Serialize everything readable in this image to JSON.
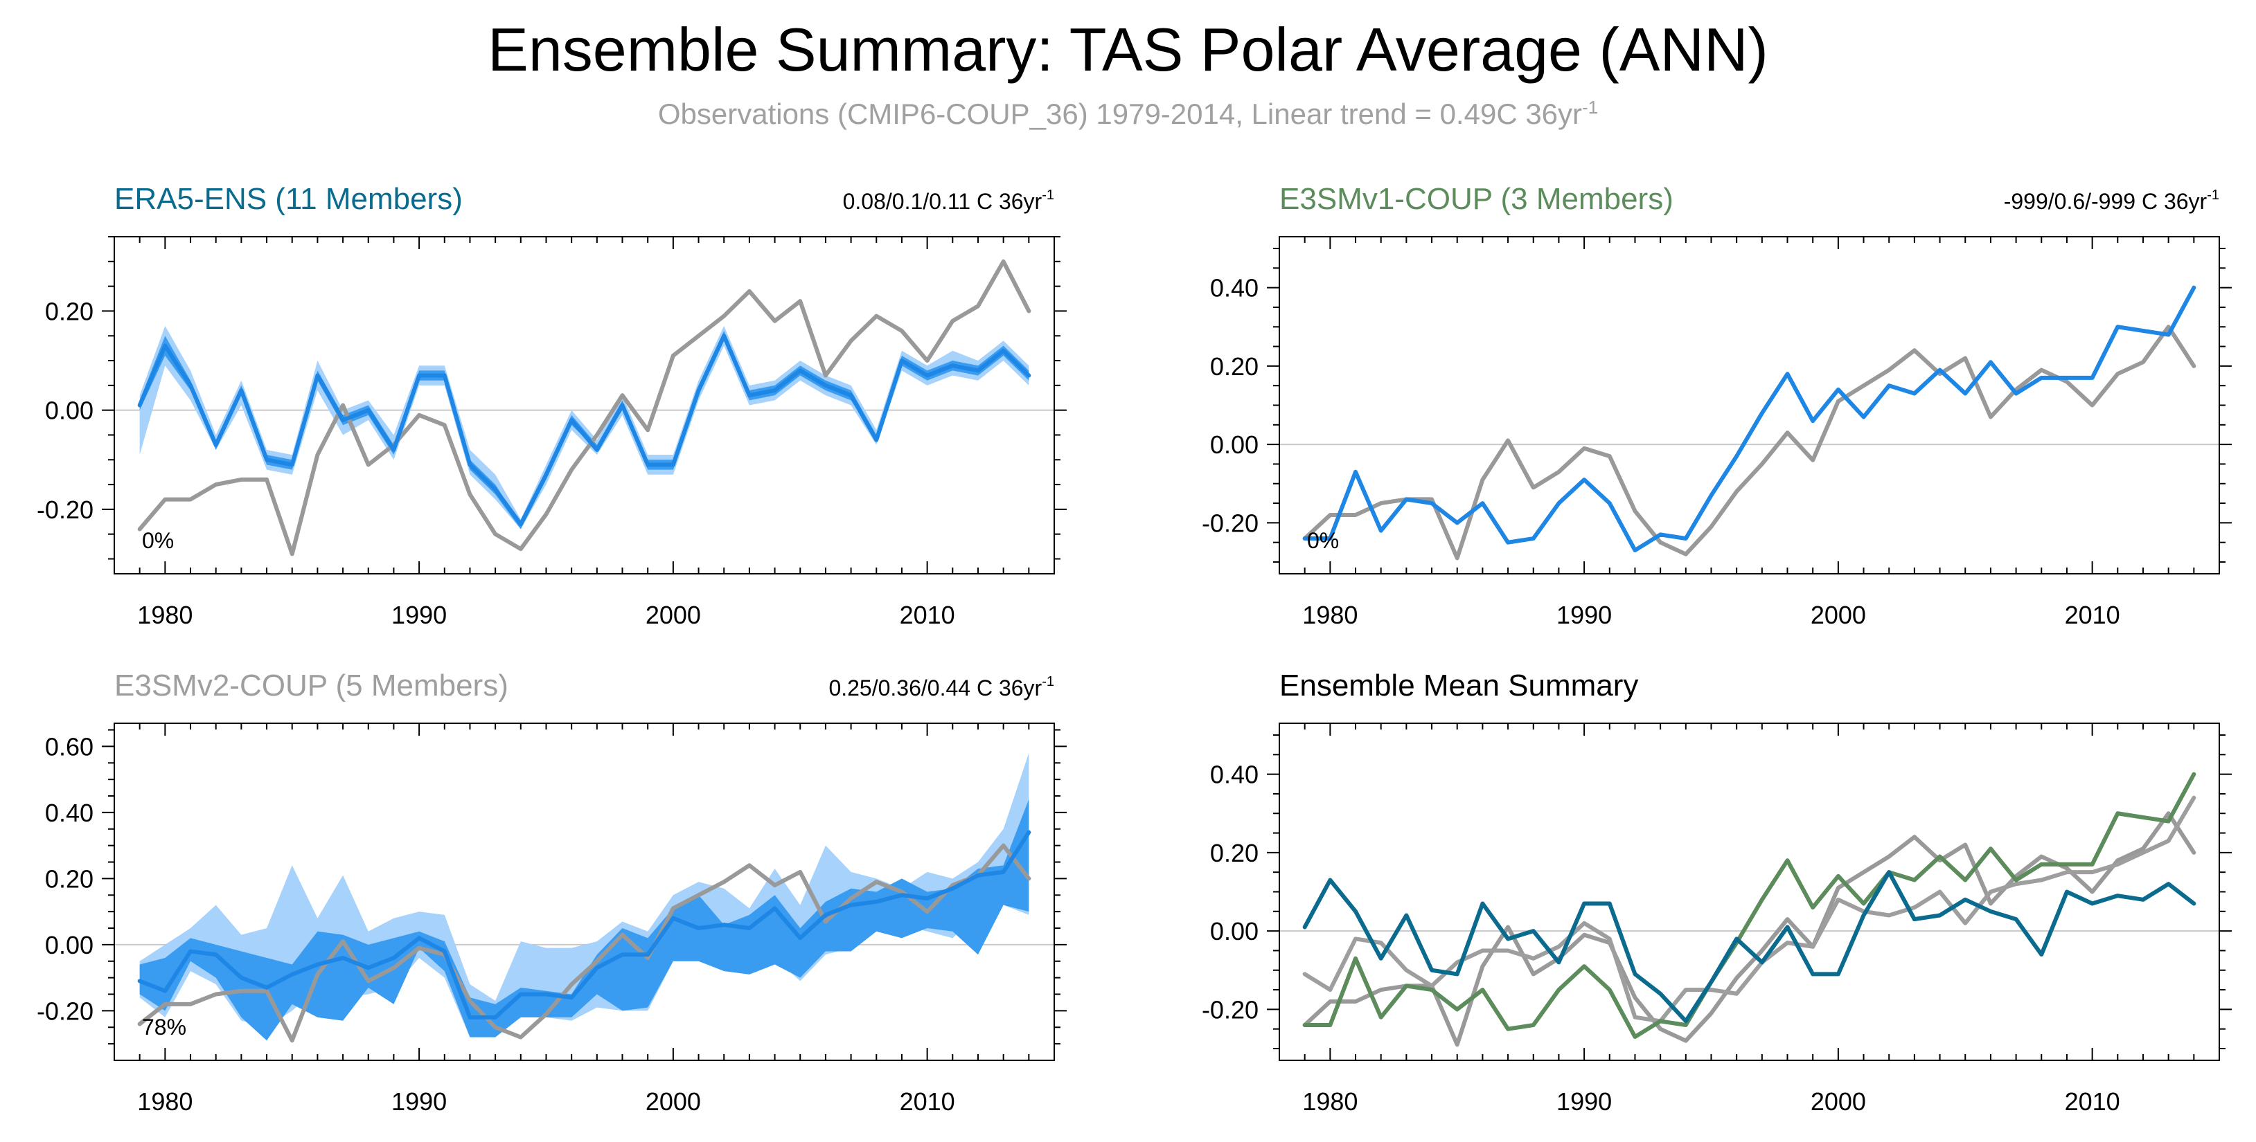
{
  "title": "Ensemble Summary: TAS Polar Average (ANN)",
  "subtitle": {
    "text": "Observations (CMIP6-COUP_36) 1979-2014, Linear trend = 0.49C 36yr",
    "superscript": "-1"
  },
  "colors": {
    "obs": "#999999",
    "mean_blue": "#1e87e6",
    "band_dark": "#3a9cf0",
    "band_light": "#a6d2fb",
    "era5_mean": "#0a6b8f",
    "e3smv1_mean": "#5c8c5c",
    "e3smv2_mean": "#9e9e9e",
    "era5_title": "#0a6b8f",
    "e3smv1_title": "#5c8c5c",
    "e3smv2_title": "#9e9e9e"
  },
  "chart_data": [
    {
      "type": "line",
      "title": "ERA5-ENS (11 Members)",
      "trend_text": "0.08/0.1/0.11 C 36yr",
      "trend_sup": "-1",
      "percent_label": "0%",
      "x": [
        1979,
        1980,
        1981,
        1982,
        1983,
        1984,
        1985,
        1986,
        1987,
        1988,
        1989,
        1990,
        1991,
        1992,
        1993,
        1994,
        1995,
        1996,
        1997,
        1998,
        1999,
        2000,
        2001,
        2002,
        2003,
        2004,
        2005,
        2006,
        2007,
        2008,
        2009,
        2010,
        2011,
        2012,
        2013,
        2014
      ],
      "xlim": [
        1978,
        2015
      ],
      "xticks": [
        1980,
        1990,
        2000,
        2010
      ],
      "xtick_labels": [
        "1980",
        "1990",
        "2000",
        "2010"
      ],
      "ylim": [
        -0.33,
        0.35
      ],
      "yticks": [
        -0.2,
        0,
        0.2
      ],
      "ytick_labels": [
        "-0.20",
        "0.00",
        "0.20"
      ],
      "series": [
        {
          "values": [
            0.01,
            0.13,
            0.05,
            -0.07,
            0.04,
            -0.1,
            -0.11,
            0.07,
            -0.02,
            0.0,
            -0.08,
            0.07,
            0.07,
            -0.11,
            -0.16,
            -0.23,
            -0.13,
            -0.02,
            -0.08,
            0.01,
            -0.11,
            -0.11,
            0.04,
            0.15,
            0.03,
            0.04,
            0.08,
            0.05,
            0.03,
            -0.06,
            0.1,
            0.07,
            0.09,
            0.08,
            0.12,
            0.07
          ]
        },
        {
          "values": [
            -0.24,
            -0.18,
            -0.18,
            -0.15,
            -0.14,
            -0.14,
            -0.29,
            -0.09,
            0.01,
            -0.11,
            -0.07,
            -0.01,
            -0.03,
            -0.17,
            -0.25,
            -0.28,
            -0.21,
            -0.12,
            -0.05,
            0.03,
            -0.04,
            0.11,
            0.15,
            0.19,
            0.24,
            0.18,
            0.22,
            0.07,
            0.14,
            0.19,
            0.16,
            0.1,
            0.18,
            0.21,
            0.3,
            0.2
          ]
        }
      ],
      "band_light": {
        "lower": [
          -0.09,
          0.09,
          0.02,
          -0.08,
          0.01,
          -0.12,
          -0.13,
          0.04,
          -0.05,
          -0.02,
          -0.1,
          0.05,
          0.05,
          -0.13,
          -0.18,
          -0.24,
          -0.15,
          -0.04,
          -0.09,
          -0.01,
          -0.13,
          -0.13,
          0.02,
          0.13,
          0.01,
          0.02,
          0.06,
          0.03,
          0.01,
          -0.07,
          0.08,
          0.05,
          0.07,
          0.06,
          0.1,
          0.05
        ],
        "upper": [
          0.03,
          0.17,
          0.08,
          -0.05,
          0.06,
          -0.08,
          -0.09,
          0.1,
          0.0,
          0.02,
          -0.05,
          0.09,
          0.09,
          -0.08,
          -0.13,
          -0.22,
          -0.11,
          0.0,
          -0.06,
          0.03,
          -0.09,
          -0.09,
          0.06,
          0.17,
          0.05,
          0.06,
          0.1,
          0.07,
          0.05,
          -0.04,
          0.12,
          0.09,
          0.12,
          0.1,
          0.14,
          0.09
        ]
      },
      "band_dark": {
        "lower": [
          0.0,
          0.11,
          0.04,
          -0.08,
          0.03,
          -0.11,
          -0.12,
          0.06,
          -0.03,
          -0.01,
          -0.09,
          0.06,
          0.06,
          -0.12,
          -0.17,
          -0.24,
          -0.14,
          -0.03,
          -0.08,
          0.0,
          -0.12,
          -0.12,
          0.03,
          0.14,
          0.02,
          0.03,
          0.07,
          0.04,
          0.02,
          -0.06,
          0.09,
          0.06,
          0.08,
          0.07,
          0.11,
          0.06
        ],
        "upper": [
          0.02,
          0.15,
          0.06,
          -0.06,
          0.05,
          -0.09,
          -0.1,
          0.08,
          -0.01,
          0.01,
          -0.07,
          0.08,
          0.08,
          -0.1,
          -0.15,
          -0.23,
          -0.12,
          -0.01,
          -0.07,
          0.02,
          -0.1,
          -0.1,
          0.05,
          0.16,
          0.04,
          0.05,
          0.09,
          0.06,
          0.04,
          -0.05,
          0.11,
          0.08,
          0.1,
          0.09,
          0.13,
          0.08
        ]
      }
    },
    {
      "type": "line",
      "title": "E3SMv1-COUP (3 Members)",
      "trend_text": "-999/0.6/-999 C 36yr",
      "trend_sup": "-1",
      "percent_label": "0%",
      "x": [
        1979,
        1980,
        1981,
        1982,
        1983,
        1984,
        1985,
        1986,
        1987,
        1988,
        1989,
        1990,
        1991,
        1992,
        1993,
        1994,
        1995,
        1996,
        1997,
        1998,
        1999,
        2000,
        2001,
        2002,
        2003,
        2004,
        2005,
        2006,
        2007,
        2008,
        2009,
        2010,
        2011,
        2012,
        2013,
        2014
      ],
      "xlim": [
        1978,
        2015
      ],
      "xticks": [
        1980,
        1990,
        2000,
        2010
      ],
      "xtick_labels": [
        "1980",
        "1990",
        "2000",
        "2010"
      ],
      "ylim": [
        -0.33,
        0.53
      ],
      "yticks": [
        -0.2,
        0,
        0.2,
        0.4
      ],
      "ytick_labels": [
        "-0.20",
        "0.00",
        "0.20",
        "0.40"
      ],
      "series": [
        {
          "values": [
            -0.24,
            -0.24,
            -0.07,
            -0.22,
            -0.14,
            -0.15,
            -0.2,
            -0.15,
            -0.25,
            -0.24,
            -0.15,
            -0.09,
            -0.15,
            -0.27,
            -0.23,
            -0.24,
            -0.13,
            -0.03,
            0.08,
            0.18,
            0.06,
            0.14,
            0.07,
            0.15,
            0.13,
            0.19,
            0.13,
            0.21,
            0.13,
            0.17,
            0.17,
            0.17,
            0.3,
            0.29,
            0.28,
            0.4
          ]
        },
        {
          "values": [
            -0.24,
            -0.18,
            -0.18,
            -0.15,
            -0.14,
            -0.14,
            -0.29,
            -0.09,
            0.01,
            -0.11,
            -0.07,
            -0.01,
            -0.03,
            -0.17,
            -0.25,
            -0.28,
            -0.21,
            -0.12,
            -0.05,
            0.03,
            -0.04,
            0.11,
            0.15,
            0.19,
            0.24,
            0.18,
            0.22,
            0.07,
            0.14,
            0.19,
            0.16,
            0.1,
            0.18,
            0.21,
            0.3,
            0.2
          ]
        }
      ]
    },
    {
      "type": "line",
      "title": "E3SMv2-COUP (5 Members)",
      "trend_text": "0.25/0.36/0.44 C 36yr",
      "trend_sup": "-1",
      "percent_label": "78%",
      "x": [
        1979,
        1980,
        1981,
        1982,
        1983,
        1984,
        1985,
        1986,
        1987,
        1988,
        1989,
        1990,
        1991,
        1992,
        1993,
        1994,
        1995,
        1996,
        1997,
        1998,
        1999,
        2000,
        2001,
        2002,
        2003,
        2004,
        2005,
        2006,
        2007,
        2008,
        2009,
        2010,
        2011,
        2012,
        2013,
        2014
      ],
      "xlim": [
        1978,
        2015
      ],
      "xticks": [
        1980,
        1990,
        2000,
        2010
      ],
      "xtick_labels": [
        "1980",
        "1990",
        "2000",
        "2010"
      ],
      "ylim": [
        -0.35,
        0.67
      ],
      "yticks": [
        -0.2,
        0,
        0.2,
        0.4,
        0.6
      ],
      "ytick_labels": [
        "-0.20",
        "0.00",
        "0.20",
        "0.40",
        "0.60"
      ],
      "series": [
        {
          "values": [
            -0.11,
            -0.14,
            -0.02,
            -0.03,
            -0.1,
            -0.13,
            -0.09,
            -0.06,
            -0.04,
            -0.07,
            -0.04,
            0.02,
            -0.02,
            -0.22,
            -0.22,
            -0.15,
            -0.15,
            -0.16,
            -0.07,
            -0.03,
            -0.03,
            0.08,
            0.05,
            0.06,
            0.05,
            0.11,
            0.02,
            0.09,
            0.12,
            0.13,
            0.15,
            0.14,
            0.17,
            0.21,
            0.22,
            0.34
          ]
        },
        {
          "values": [
            -0.24,
            -0.18,
            -0.18,
            -0.15,
            -0.14,
            -0.14,
            -0.29,
            -0.09,
            0.01,
            -0.11,
            -0.07,
            -0.01,
            -0.03,
            -0.17,
            -0.25,
            -0.28,
            -0.21,
            -0.12,
            -0.05,
            0.03,
            -0.04,
            0.11,
            0.15,
            0.19,
            0.24,
            0.18,
            0.22,
            0.07,
            0.14,
            0.19,
            0.16,
            0.1,
            0.18,
            0.21,
            0.3,
            0.2
          ]
        }
      ],
      "band_light": {
        "lower": [
          -0.16,
          -0.22,
          -0.08,
          -0.12,
          -0.23,
          -0.25,
          -0.2,
          -0.13,
          -0.16,
          -0.15,
          -0.13,
          -0.04,
          -0.1,
          -0.28,
          -0.27,
          -0.22,
          -0.22,
          -0.23,
          -0.19,
          -0.2,
          -0.2,
          -0.05,
          -0.05,
          -0.06,
          -0.08,
          -0.04,
          -0.11,
          -0.03,
          -0.01,
          0.04,
          0.06,
          0.04,
          0.02,
          0.09,
          0.12,
          0.09
        ],
        "upper": [
          -0.05,
          0.0,
          0.05,
          0.12,
          0.03,
          0.05,
          0.24,
          0.08,
          0.21,
          0.04,
          0.08,
          0.1,
          0.09,
          -0.12,
          -0.17,
          0.01,
          -0.01,
          -0.01,
          0.01,
          0.07,
          0.04,
          0.15,
          0.19,
          0.17,
          0.11,
          0.23,
          0.12,
          0.3,
          0.22,
          0.2,
          0.17,
          0.22,
          0.2,
          0.25,
          0.35,
          0.58
        ]
      },
      "band_dark": {
        "lower": [
          -0.15,
          -0.2,
          -0.05,
          -0.1,
          -0.22,
          -0.29,
          -0.18,
          -0.22,
          -0.23,
          -0.13,
          -0.18,
          -0.01,
          -0.08,
          -0.28,
          -0.28,
          -0.22,
          -0.22,
          -0.22,
          -0.15,
          -0.2,
          -0.19,
          -0.05,
          -0.05,
          -0.08,
          -0.09,
          -0.06,
          -0.1,
          -0.02,
          -0.02,
          0.04,
          0.02,
          0.05,
          0.04,
          -0.03,
          0.12,
          0.1
        ],
        "upper": [
          -0.06,
          -0.04,
          0.02,
          0.0,
          -0.02,
          -0.04,
          -0.06,
          0.04,
          0.03,
          0.0,
          0.02,
          0.04,
          0.01,
          -0.16,
          -0.18,
          -0.13,
          -0.14,
          -0.15,
          -0.03,
          0.05,
          0.02,
          0.11,
          0.15,
          0.06,
          0.09,
          0.15,
          0.05,
          0.13,
          0.17,
          0.16,
          0.2,
          0.16,
          0.17,
          0.23,
          0.24,
          0.44
        ]
      }
    },
    {
      "type": "line",
      "title": "Ensemble Mean Summary",
      "x": [
        1979,
        1980,
        1981,
        1982,
        1983,
        1984,
        1985,
        1986,
        1987,
        1988,
        1989,
        1990,
        1991,
        1992,
        1993,
        1994,
        1995,
        1996,
        1997,
        1998,
        1999,
        2000,
        2001,
        2002,
        2003,
        2004,
        2005,
        2006,
        2007,
        2008,
        2009,
        2010,
        2011,
        2012,
        2013,
        2014
      ],
      "xlim": [
        1978,
        2015
      ],
      "xticks": [
        1980,
        1990,
        2000,
        2010
      ],
      "xtick_labels": [
        "1980",
        "1990",
        "2000",
        "2010"
      ],
      "ylim": [
        -0.33,
        0.53
      ],
      "yticks": [
        -0.2,
        0,
        0.2,
        0.4
      ],
      "ytick_labels": [
        "-0.20",
        "0.00",
        "0.20",
        "0.40"
      ],
      "series": [
        {
          "values": [
            -0.24,
            -0.18,
            -0.18,
            -0.15,
            -0.14,
            -0.14,
            -0.29,
            -0.09,
            0.01,
            -0.11,
            -0.07,
            -0.01,
            -0.03,
            -0.17,
            -0.25,
            -0.28,
            -0.21,
            -0.12,
            -0.05,
            0.03,
            -0.04,
            0.11,
            0.15,
            0.19,
            0.24,
            0.18,
            0.22,
            0.07,
            0.14,
            0.19,
            0.16,
            0.1,
            0.18,
            0.21,
            0.3,
            0.2
          ]
        },
        {
          "values": [
            -0.11,
            -0.15,
            -0.02,
            -0.03,
            -0.1,
            -0.14,
            -0.08,
            -0.05,
            -0.05,
            -0.07,
            -0.04,
            0.02,
            -0.02,
            -0.22,
            -0.23,
            -0.15,
            -0.15,
            -0.16,
            -0.08,
            -0.03,
            -0.04,
            0.08,
            0.05,
            0.04,
            0.06,
            0.1,
            0.02,
            0.1,
            0.12,
            0.13,
            0.15,
            0.15,
            0.17,
            0.2,
            0.23,
            0.34
          ]
        },
        {
          "values": [
            -0.24,
            -0.24,
            -0.07,
            -0.22,
            -0.14,
            -0.15,
            -0.2,
            -0.15,
            -0.25,
            -0.24,
            -0.15,
            -0.09,
            -0.15,
            -0.27,
            -0.23,
            -0.24,
            -0.13,
            -0.03,
            0.08,
            0.18,
            0.06,
            0.14,
            0.07,
            0.15,
            0.13,
            0.19,
            0.13,
            0.21,
            0.13,
            0.17,
            0.17,
            0.17,
            0.3,
            0.29,
            0.28,
            0.4
          ]
        },
        {
          "values": [
            0.01,
            0.13,
            0.05,
            -0.07,
            0.04,
            -0.1,
            -0.11,
            0.07,
            -0.02,
            0.0,
            -0.08,
            0.07,
            0.07,
            -0.11,
            -0.16,
            -0.23,
            -0.13,
            -0.02,
            -0.08,
            0.01,
            -0.11,
            -0.11,
            0.04,
            0.15,
            0.03,
            0.04,
            0.08,
            0.05,
            0.03,
            -0.06,
            0.1,
            0.07,
            0.09,
            0.08,
            0.12,
            0.07
          ]
        }
      ]
    }
  ]
}
